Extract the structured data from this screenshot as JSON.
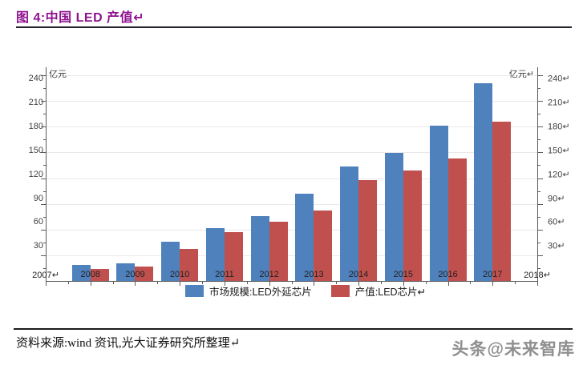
{
  "header": {
    "title": "图 4:中国 LED 产值↵"
  },
  "theme": {
    "title_color": "#8e128e",
    "axis_color": "#5a5a5a",
    "gridline_color": "#e9e9e9",
    "bar_blue": "#4f81bd",
    "bar_red": "#c0504d"
  },
  "chart_data": {
    "type": "bar",
    "title": "图 4:中国 LED 产值",
    "ylabel_left": "亿元",
    "ylabel_right": "亿元↵",
    "ylim": [
      0,
      240
    ],
    "ytick_step": 30,
    "y_ticks_left": [
      "240",
      "210",
      "180",
      "150",
      "120",
      "90",
      "60",
      "30"
    ],
    "y_ticks_right": [
      "240↵",
      "210↵",
      "180↵",
      "150↵",
      "120↵",
      "90↵",
      "60↵",
      "30↵"
    ],
    "x_axis_labels": [
      "2007↵",
      "2008",
      "2009",
      "2010",
      "2011",
      "2012",
      "2013",
      "2014",
      "2015",
      "2016",
      "2017",
      "2018↵"
    ],
    "categories": [
      "2008",
      "2009",
      "2010",
      "2011",
      "2012",
      "2013",
      "2014",
      "2015",
      "2016",
      "2017"
    ],
    "series": [
      {
        "name": "市场规模:LED外延芯片",
        "color": "#4f81bd",
        "values": [
          19,
          21,
          46,
          62,
          76,
          102,
          134,
          149,
          181,
          231
        ]
      },
      {
        "name": "产值:LED芯片↵",
        "color": "#c0504d",
        "values": [
          14,
          17,
          37,
          57,
          69,
          82,
          118,
          129,
          143,
          186
        ]
      }
    ],
    "grid": true,
    "legend_position": "bottom"
  },
  "footer": {
    "source": "资料来源:wind 资讯,光大证券研究所整理↵",
    "watermark": "头条@未来智库"
  }
}
